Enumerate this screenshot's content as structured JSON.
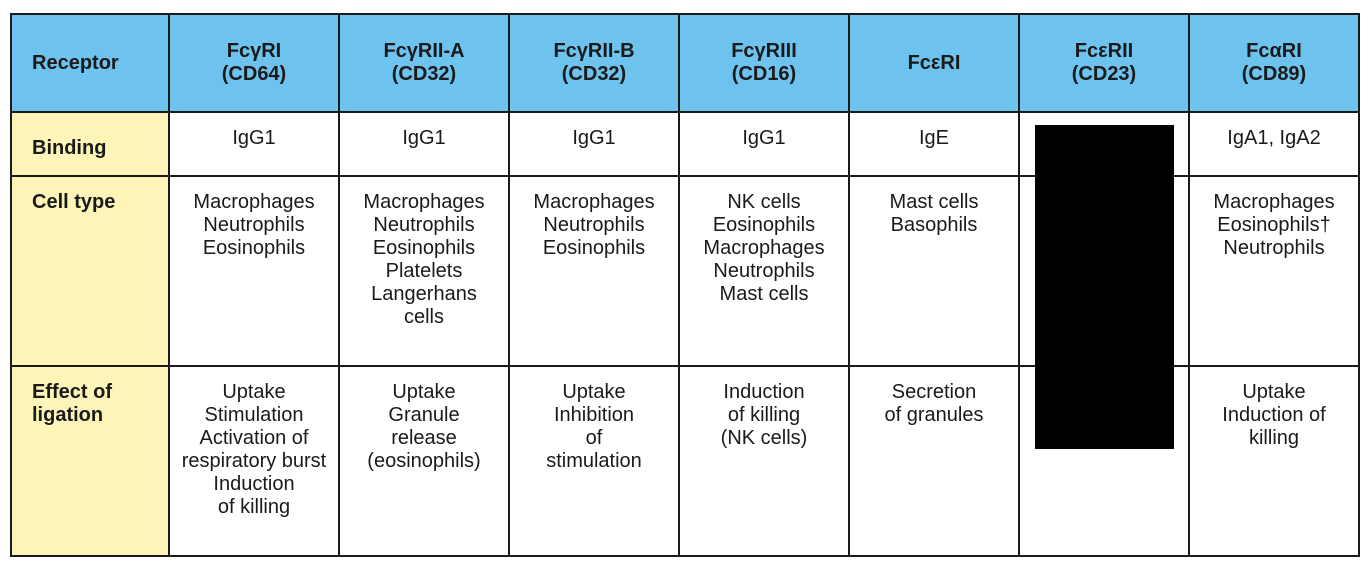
{
  "table": {
    "header": {
      "row_label": "Receptor",
      "columns": [
        {
          "line1": "FcγRI",
          "line2": "(CD64)"
        },
        {
          "line1": "FcγRII-A",
          "line2": "(CD32)"
        },
        {
          "line1": "FcγRII-B",
          "line2": "(CD32)"
        },
        {
          "line1": "FcγRIII",
          "line2": "(CD16)"
        },
        {
          "line1": "FcεRI",
          "line2": ""
        },
        {
          "line1": "FcεRII",
          "line2": "(CD23)"
        },
        {
          "line1": "FcαRI",
          "line2": "(CD89)"
        }
      ]
    },
    "binding": {
      "label": "Binding",
      "cells": [
        "IgG1",
        "IgG1",
        "IgG1",
        "IgG1",
        "IgE",
        "",
        "IgA1, IgA2"
      ]
    },
    "cell_type": {
      "label": "Cell type",
      "cells": [
        [
          "Macrophages",
          "Neutrophils",
          "Eosinophils"
        ],
        [
          "Macrophages",
          "Neutrophils",
          "Eosinophils",
          "Platelets",
          "Langerhans",
          "cells"
        ],
        [
          "Macrophages",
          "Neutrophils",
          "Eosinophils"
        ],
        [
          "NK cells",
          "Eosinophils",
          "Macrophages",
          "Neutrophils",
          "Mast cells"
        ],
        [
          "Mast cells",
          "Basophils"
        ],
        [],
        [
          "Macrophages",
          "Eosinophils†",
          "Neutrophils"
        ]
      ]
    },
    "effect": {
      "label_line1": "Effect of",
      "label_line2": "ligation",
      "cells": [
        [
          "Uptake",
          "Stimulation",
          "Activation of",
          "respiratory burst",
          "Induction",
          "of killing"
        ],
        [
          "Uptake",
          "Granule",
          "release",
          "(eosinophils)"
        ],
        [
          "Uptake",
          "Inhibition",
          "of",
          "stimulation"
        ],
        [
          "Induction",
          "of killing",
          "(NK cells)"
        ],
        [
          "Secretion",
          "of granules"
        ],
        [],
        [
          "Uptake",
          "Induction of",
          "killing"
        ]
      ]
    }
  },
  "colors": {
    "header_bg": "#6ec3ee",
    "row_label_bg": "#fdf5b8",
    "border": "#1a1a1a",
    "redaction": "#000000"
  }
}
